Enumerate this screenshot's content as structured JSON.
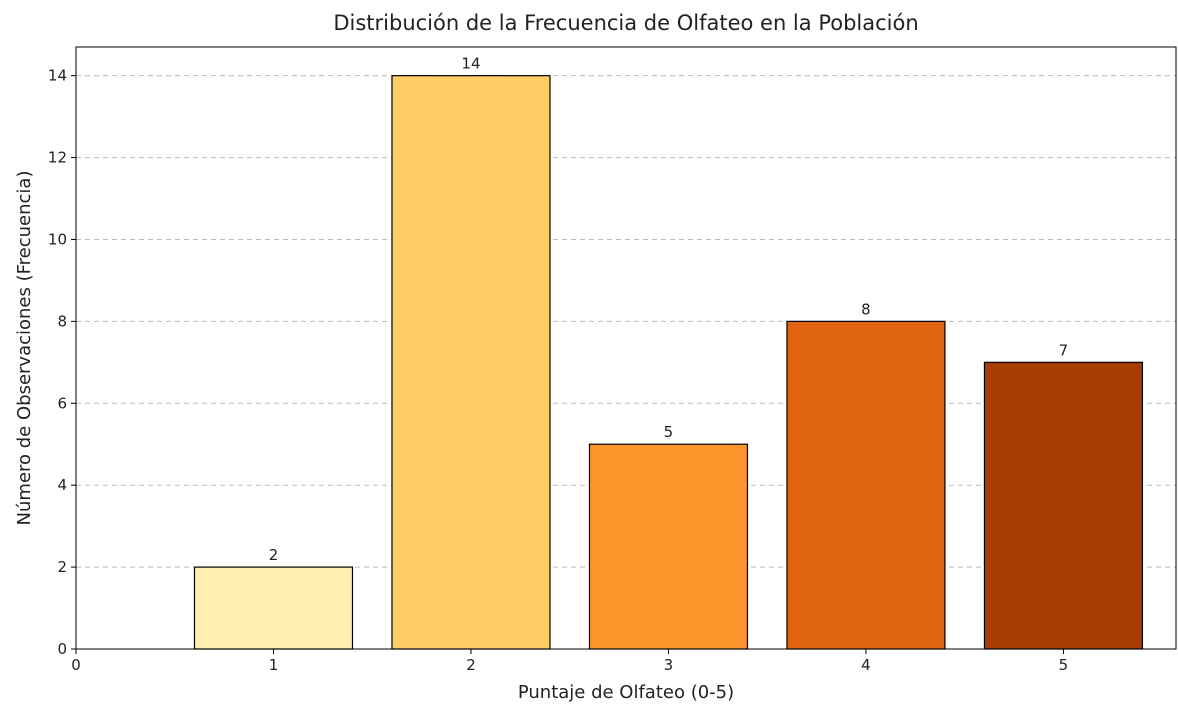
{
  "chart_data": {
    "type": "bar",
    "title": "Distribución de la Frecuencia de Olfateo en la Población",
    "xlabel": "Puntaje de Olfateo (0-5)",
    "ylabel": "Número de Observaciones (Frecuencia)",
    "x": [
      1,
      2,
      3,
      4,
      5
    ],
    "values": [
      2,
      14,
      5,
      8,
      7
    ],
    "colors": [
      "#fff0b0",
      "#fecd64",
      "#fb952c",
      "#e06412",
      "#a83c04"
    ],
    "xlim": [
      0,
      5.57
    ],
    "xticks": [
      0,
      1,
      2,
      3,
      4,
      5
    ],
    "ylim": [
      0,
      14.7
    ],
    "yticks": [
      0,
      2,
      4,
      6,
      8,
      10,
      12,
      14
    ],
    "grid": true
  }
}
